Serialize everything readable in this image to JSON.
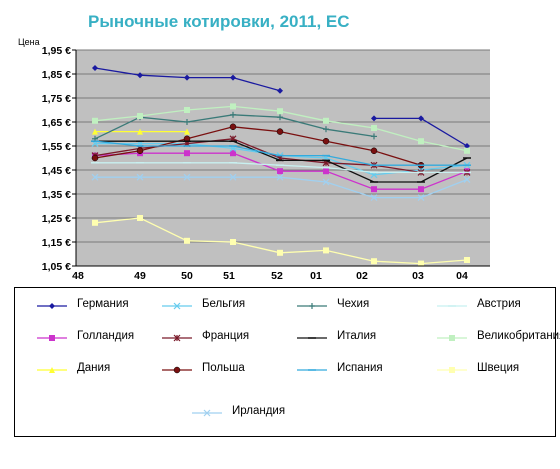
{
  "chart_data": {
    "type": "line",
    "title": "Рыночные котировки, 2011, ЕС",
    "ylabel": "Цена",
    "xlabel": "",
    "categories": [
      "48",
      "49",
      "50",
      "51",
      "52",
      "01",
      "02",
      "03",
      "04"
    ],
    "y_ticks": [
      "1,95 €",
      "1,85 €",
      "1,75 €",
      "1,65 €",
      "1,55 €",
      "1,45 €",
      "1,35 €",
      "1,25 €",
      "1,15 €",
      "1,05 €"
    ],
    "ylim": [
      1.05,
      1.95
    ],
    "grid": "horizontal",
    "legend_position": "bottom",
    "series": [
      {
        "name": "Германия",
        "color": "#1a1aa0",
        "marker": "diamond",
        "values": [
          1.875,
          1.845,
          1.835,
          1.835,
          1.78,
          null,
          1.665,
          1.665,
          1.55
        ]
      },
      {
        "name": "Голландия",
        "color": "#cc33cc",
        "marker": "square",
        "values": [
          1.51,
          1.52,
          1.52,
          1.52,
          1.445,
          1.445,
          1.37,
          1.37,
          1.445
        ]
      },
      {
        "name": "Дания",
        "color": "#ffff33",
        "marker": "triangle",
        "values": [
          1.61,
          1.61,
          1.61,
          null,
          null,
          null,
          null,
          null,
          null
        ]
      },
      {
        "name": "Бельгия",
        "color": "#66ccee",
        "marker": "x",
        "values": [
          1.56,
          1.56,
          1.56,
          1.54,
          1.51,
          1.5,
          1.43,
          1.45,
          1.47
        ]
      },
      {
        "name": "Франция",
        "color": "#7a1a2a",
        "marker": "star",
        "values": [
          1.51,
          1.54,
          1.56,
          1.58,
          1.5,
          1.48,
          1.47,
          1.44,
          1.44
        ]
      },
      {
        "name": "Польша",
        "color": "#7a1010",
        "marker": "circle",
        "values": [
          1.5,
          1.53,
          1.58,
          1.63,
          1.61,
          1.57,
          1.53,
          1.47,
          null
        ]
      },
      {
        "name": "Чехия",
        "color": "#3a7a78",
        "marker": "plus",
        "values": [
          1.58,
          1.67,
          1.65,
          1.68,
          1.67,
          1.62,
          1.59,
          null,
          null
        ]
      },
      {
        "name": "Италия",
        "color": "#101010",
        "marker": "dash",
        "values": [
          1.57,
          1.57,
          1.57,
          1.57,
          1.49,
          1.49,
          1.4,
          1.4,
          1.5
        ]
      },
      {
        "name": "Испания",
        "color": "#33aadd",
        "marker": "dash",
        "values": [
          1.57,
          1.55,
          1.55,
          1.55,
          1.51,
          1.51,
          1.47,
          1.47,
          1.47
        ]
      },
      {
        "name": "Австрия",
        "color": "#c8f0f0",
        "marker": "dash",
        "values": [
          1.48,
          1.48,
          1.48,
          1.48,
          1.47,
          1.46,
          1.44,
          1.44,
          1.44
        ]
      },
      {
        "name": "Великобритания",
        "color": "#c0f0c0",
        "marker": "square",
        "values": [
          1.655,
          1.675,
          1.7,
          1.715,
          1.695,
          1.655,
          1.625,
          1.57,
          1.53
        ]
      },
      {
        "name": "Швеция",
        "color": "#ffffb0",
        "marker": "square",
        "values": [
          1.23,
          1.25,
          1.155,
          1.15,
          1.105,
          1.115,
          1.07,
          1.06,
          1.075
        ]
      },
      {
        "name": "Ирландия",
        "color": "#a0d0f0",
        "marker": "x",
        "values": [
          1.42,
          1.42,
          1.42,
          1.42,
          1.42,
          1.4,
          1.335,
          1.335,
          1.41
        ]
      }
    ]
  }
}
